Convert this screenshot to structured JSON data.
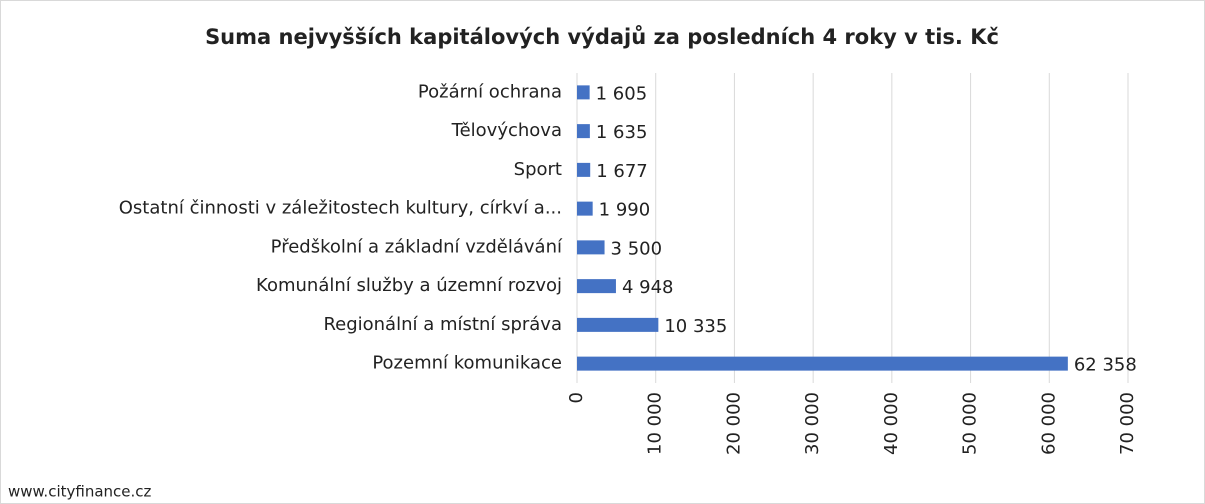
{
  "chart_data": {
    "type": "bar",
    "orientation": "horizontal",
    "title": "Suma nejvyšších kapitálových výdajů za posledních 4 roky v tis. Kč",
    "categories": [
      "Požární ochrana",
      "Tělovýchova",
      "Sport",
      "Ostatní činnosti v záležitostech kultury, církví a...",
      "Předškolní a základní vzdělávání",
      "Komunální služby a územní rozvoj",
      "Regionální a místní správa",
      "Pozemní komunikace"
    ],
    "values": [
      1605,
      1635,
      1677,
      1990,
      3500,
      4948,
      10335,
      62358
    ],
    "value_labels": [
      "1 605",
      "1 635",
      "1 677",
      "1 990",
      "3 500",
      "4 948",
      "10 335",
      "62 358"
    ],
    "color": "#4472c4",
    "xlim": [
      0,
      70000
    ],
    "xticks": [
      0,
      {
        "value": 10000,
        "label": "10 000"
      },
      {
        "value": 20000,
        "label": "20 000"
      },
      {
        "value": 30000,
        "label": "30 000"
      },
      {
        "value": 40000,
        "label": "40 000"
      },
      {
        "value": 50000,
        "label": "50 000"
      },
      {
        "value": 60000,
        "label": "60 000"
      },
      {
        "value": 70000,
        "label": "70 000"
      }
    ],
    "grid": true,
    "source": "www.cityfinance.cz"
  }
}
